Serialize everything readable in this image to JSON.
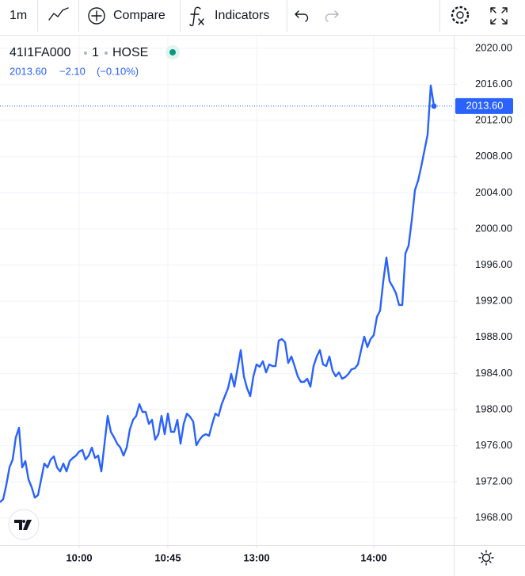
{
  "toolbar": {
    "interval": "1m",
    "compare": "Compare",
    "indicators": "Indicators"
  },
  "chart_data": {
    "type": "line",
    "symbol": "41I1FA000",
    "resolution": "1",
    "exchange": "HOSE",
    "last_price": "2013.60",
    "change": "−2.10",
    "change_percent": "(−0.10%)",
    "series": [
      {
        "color": "#2962ff",
        "values": [
          1969.74,
          1970.09,
          1971.67,
          1973.6,
          1974.47,
          1976.93,
          1977.98,
          1973.6,
          1974.3,
          1972.28,
          1971.4,
          1970.26,
          1970.53,
          1972.28,
          1974.03,
          1973.6,
          1974.47,
          1974.82,
          1973.6,
          1973.16,
          1974.03,
          1973.16,
          1974.3,
          1974.65,
          1974.91,
          1975.35,
          1975.53,
          1974.47,
          1974.91,
          1975.79,
          1974.65,
          1974.91,
          1973.16,
          1976.23,
          1979.3,
          1977.54,
          1976.93,
          1976.23,
          1975.79,
          1974.91,
          1975.79,
          1977.81,
          1978.86,
          1979.3,
          1980.61,
          1979.74,
          1979.74,
          1978.42,
          1978.86,
          1976.67,
          1977.28,
          1979.3,
          1977.28,
          1979.56,
          1977.54,
          1977.54,
          1978.86,
          1976.23,
          1978.42,
          1979.56,
          1979.21,
          1978.68,
          1976.05,
          1976.67,
          1977.1,
          1977.28,
          1977.1,
          1978.42,
          1979.56,
          1979.3,
          1980.61,
          1981.49,
          1982.37,
          1983.95,
          1982.54,
          1984.56,
          1986.58,
          1983.68,
          1982.37,
          1981.49,
          1983.68,
          1985.0,
          1984.74,
          1985.35,
          1984.12,
          1985.0,
          1984.82,
          1984.82,
          1987.63,
          1987.81,
          1987.46,
          1985.17,
          1985.88,
          1984.82,
          1983.68,
          1983.07,
          1983.07,
          1983.42,
          1982.54,
          1984.82,
          1985.88,
          1986.58,
          1985.0,
          1984.82,
          1985.88,
          1984.3,
          1983.68,
          1984.12,
          1983.42,
          1983.6,
          1983.95,
          1984.47,
          1984.56,
          1985.0,
          1986.58,
          1988.07,
          1986.93,
          1987.81,
          1988.24,
          1990.26,
          1990.96,
          1994.21,
          1996.84,
          1994.21,
          1993.6,
          1992.89,
          1991.58,
          1991.58,
          1997.28,
          1998.16,
          2000.96,
          2004.3,
          2005.35,
          2006.93,
          2008.68,
          2010.44,
          2015.88,
          2013.6
        ]
      }
    ],
    "xlim": [
      0,
      143.25
    ],
    "xticks": [
      {
        "value": 25,
        "label": "10:00"
      },
      {
        "value": 53,
        "label": "10:45"
      },
      {
        "value": 81,
        "label": "13:00"
      },
      {
        "value": 118,
        "label": "14:00"
      }
    ],
    "ylim": [
      1965.0,
      2021.4
    ],
    "yticks": [
      {
        "value": 1968,
        "label": "1968.00"
      },
      {
        "value": 1972,
        "label": "1972.00"
      },
      {
        "value": 1976,
        "label": "1976.00"
      },
      {
        "value": 1980,
        "label": "1980.00"
      },
      {
        "value": 1984,
        "label": "1984.00"
      },
      {
        "value": 1988,
        "label": "1988.00"
      },
      {
        "value": 1992,
        "label": "1992.00"
      },
      {
        "value": 1996,
        "label": "1996.00"
      },
      {
        "value": 2000,
        "label": "2000.00"
      },
      {
        "value": 2004,
        "label": "2004.00"
      },
      {
        "value": 2008,
        "label": "2008.00"
      },
      {
        "value": 2012,
        "label": "2012.00"
      },
      {
        "value": 2016,
        "label": "2016.00"
      },
      {
        "value": 2020,
        "label": "2020.00"
      }
    ],
    "grid": true
  }
}
